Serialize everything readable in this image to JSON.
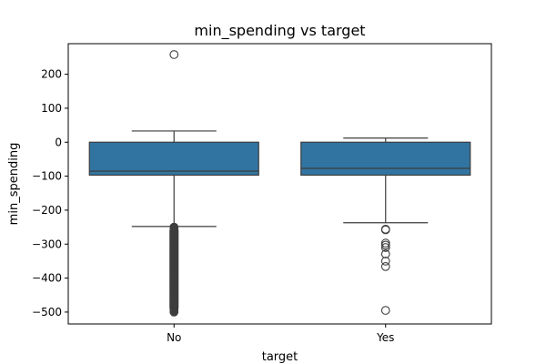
{
  "chart_data": {
    "type": "box",
    "title": "min_spending vs target",
    "xlabel": "target",
    "ylabel": "min_spending",
    "ylim": [
      -535,
      290
    ],
    "yticks": [
      200,
      100,
      0,
      -100,
      -200,
      -300,
      -400,
      -500
    ],
    "ytick_labels": [
      "200",
      "100",
      "0",
      "−100",
      "−200",
      "−300",
      "−400",
      "−500"
    ],
    "grid": false,
    "categories": [
      "No",
      "Yes"
    ],
    "box_color": "#3274a1",
    "edge_color": "#3d3d3d",
    "boxes": [
      {
        "category": "No",
        "whisker_low": -248,
        "q1": -97,
        "median": -85,
        "q3": 0,
        "whisker_high": 33,
        "outliers_high": [
          258
        ],
        "outlier_low_range": [
          -500,
          -248
        ],
        "outliers_low": [
          -250,
          -255,
          -262,
          -270,
          -280,
          -290,
          -300,
          -310,
          -320,
          -330,
          -340,
          -350,
          -360,
          -370,
          -380,
          -390,
          -400,
          -410,
          -420,
          -430,
          -440,
          -450,
          -460,
          -470,
          -480,
          -490,
          -497,
          -500
        ]
      },
      {
        "category": "Yes",
        "whisker_low": -237,
        "q1": -97,
        "median": -77,
        "q3": 0,
        "whisker_high": 12,
        "outliers_high": [],
        "outliers_low": [
          -256,
          -258,
          -297,
          -303,
          -310,
          -329,
          -350,
          -366,
          -495
        ]
      }
    ]
  }
}
